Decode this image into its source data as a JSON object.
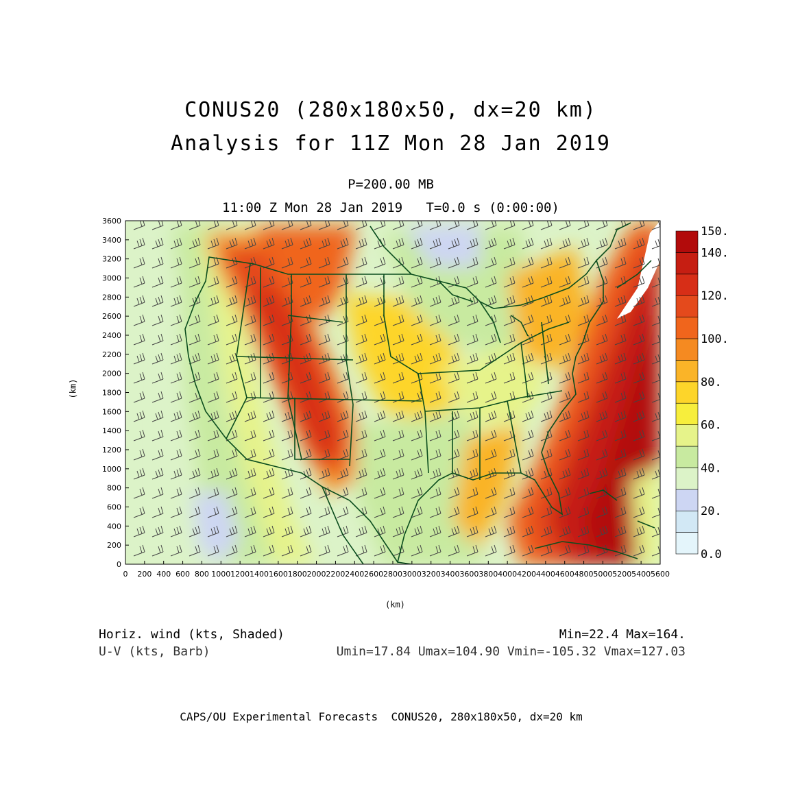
{
  "title": {
    "line1": "CONUS20 (280x180x50, dx=20 km)",
    "line2": "Analysis for 11Z Mon 28 Jan 2019",
    "level": "P=200.00 MB",
    "valid_time": "11:00 Z Mon 28 Jan 2019   T=0.0 s (0:00:00)"
  },
  "axes": {
    "x_label": "(km)",
    "y_label": "(km)",
    "x_ticks": [
      "0",
      "200",
      "400",
      "600",
      "800",
      "1000",
      "1200",
      "1400",
      "1600",
      "1800",
      "2000",
      "2200",
      "2400",
      "2600",
      "2800",
      "3000",
      "3200",
      "3400",
      "3600",
      "3800",
      "4000",
      "4200",
      "4400",
      "4600",
      "4800",
      "5000",
      "5200",
      "5400",
      "5600"
    ],
    "y_ticks": [
      "0",
      "200",
      "400",
      "600",
      "800",
      "1000",
      "1200",
      "1400",
      "1600",
      "1800",
      "2000",
      "2200",
      "2400",
      "2600",
      "2800",
      "3000",
      "3200",
      "3400",
      "3600"
    ],
    "x_range_km": [
      0,
      5600
    ],
    "y_range_km": [
      0,
      3600
    ]
  },
  "colorbar": {
    "labels": [
      "150.",
      "140.",
      "120.",
      "100.",
      "80.",
      "60.",
      "40.",
      "20.",
      "0.0"
    ],
    "levels": [
      0,
      10,
      20,
      30,
      40,
      50,
      60,
      70,
      80,
      90,
      100,
      110,
      120,
      130,
      140,
      150
    ],
    "colors": [
      "#e4f5fb",
      "#d2e8f5",
      "#cdd6f3",
      "#dcf3c8",
      "#c8eaa0",
      "#e6f38a",
      "#f7ee3c",
      "#fdd52a",
      "#fab428",
      "#f58a21",
      "#f0651c",
      "#e44a1c",
      "#d72e17",
      "#c61e12",
      "#b20b0b"
    ]
  },
  "variables": {
    "shaded": "Horiz. wind (kts, Shaded)",
    "barb": "U-V (kts, Barb)",
    "shaded_minmax": "Min=22.4 Max=164.",
    "barb_minmax": "Umin=17.84 Umax=104.90 Vmin=-105.32 Vmax=127.03"
  },
  "footer": "CAPS/OU Experimental Forecasts  CONUS20, 280x180x50, dx=20 km",
  "colors": {
    "boundary": "#0b4d1e",
    "barb": "#444444",
    "frame": "#000000"
  }
}
